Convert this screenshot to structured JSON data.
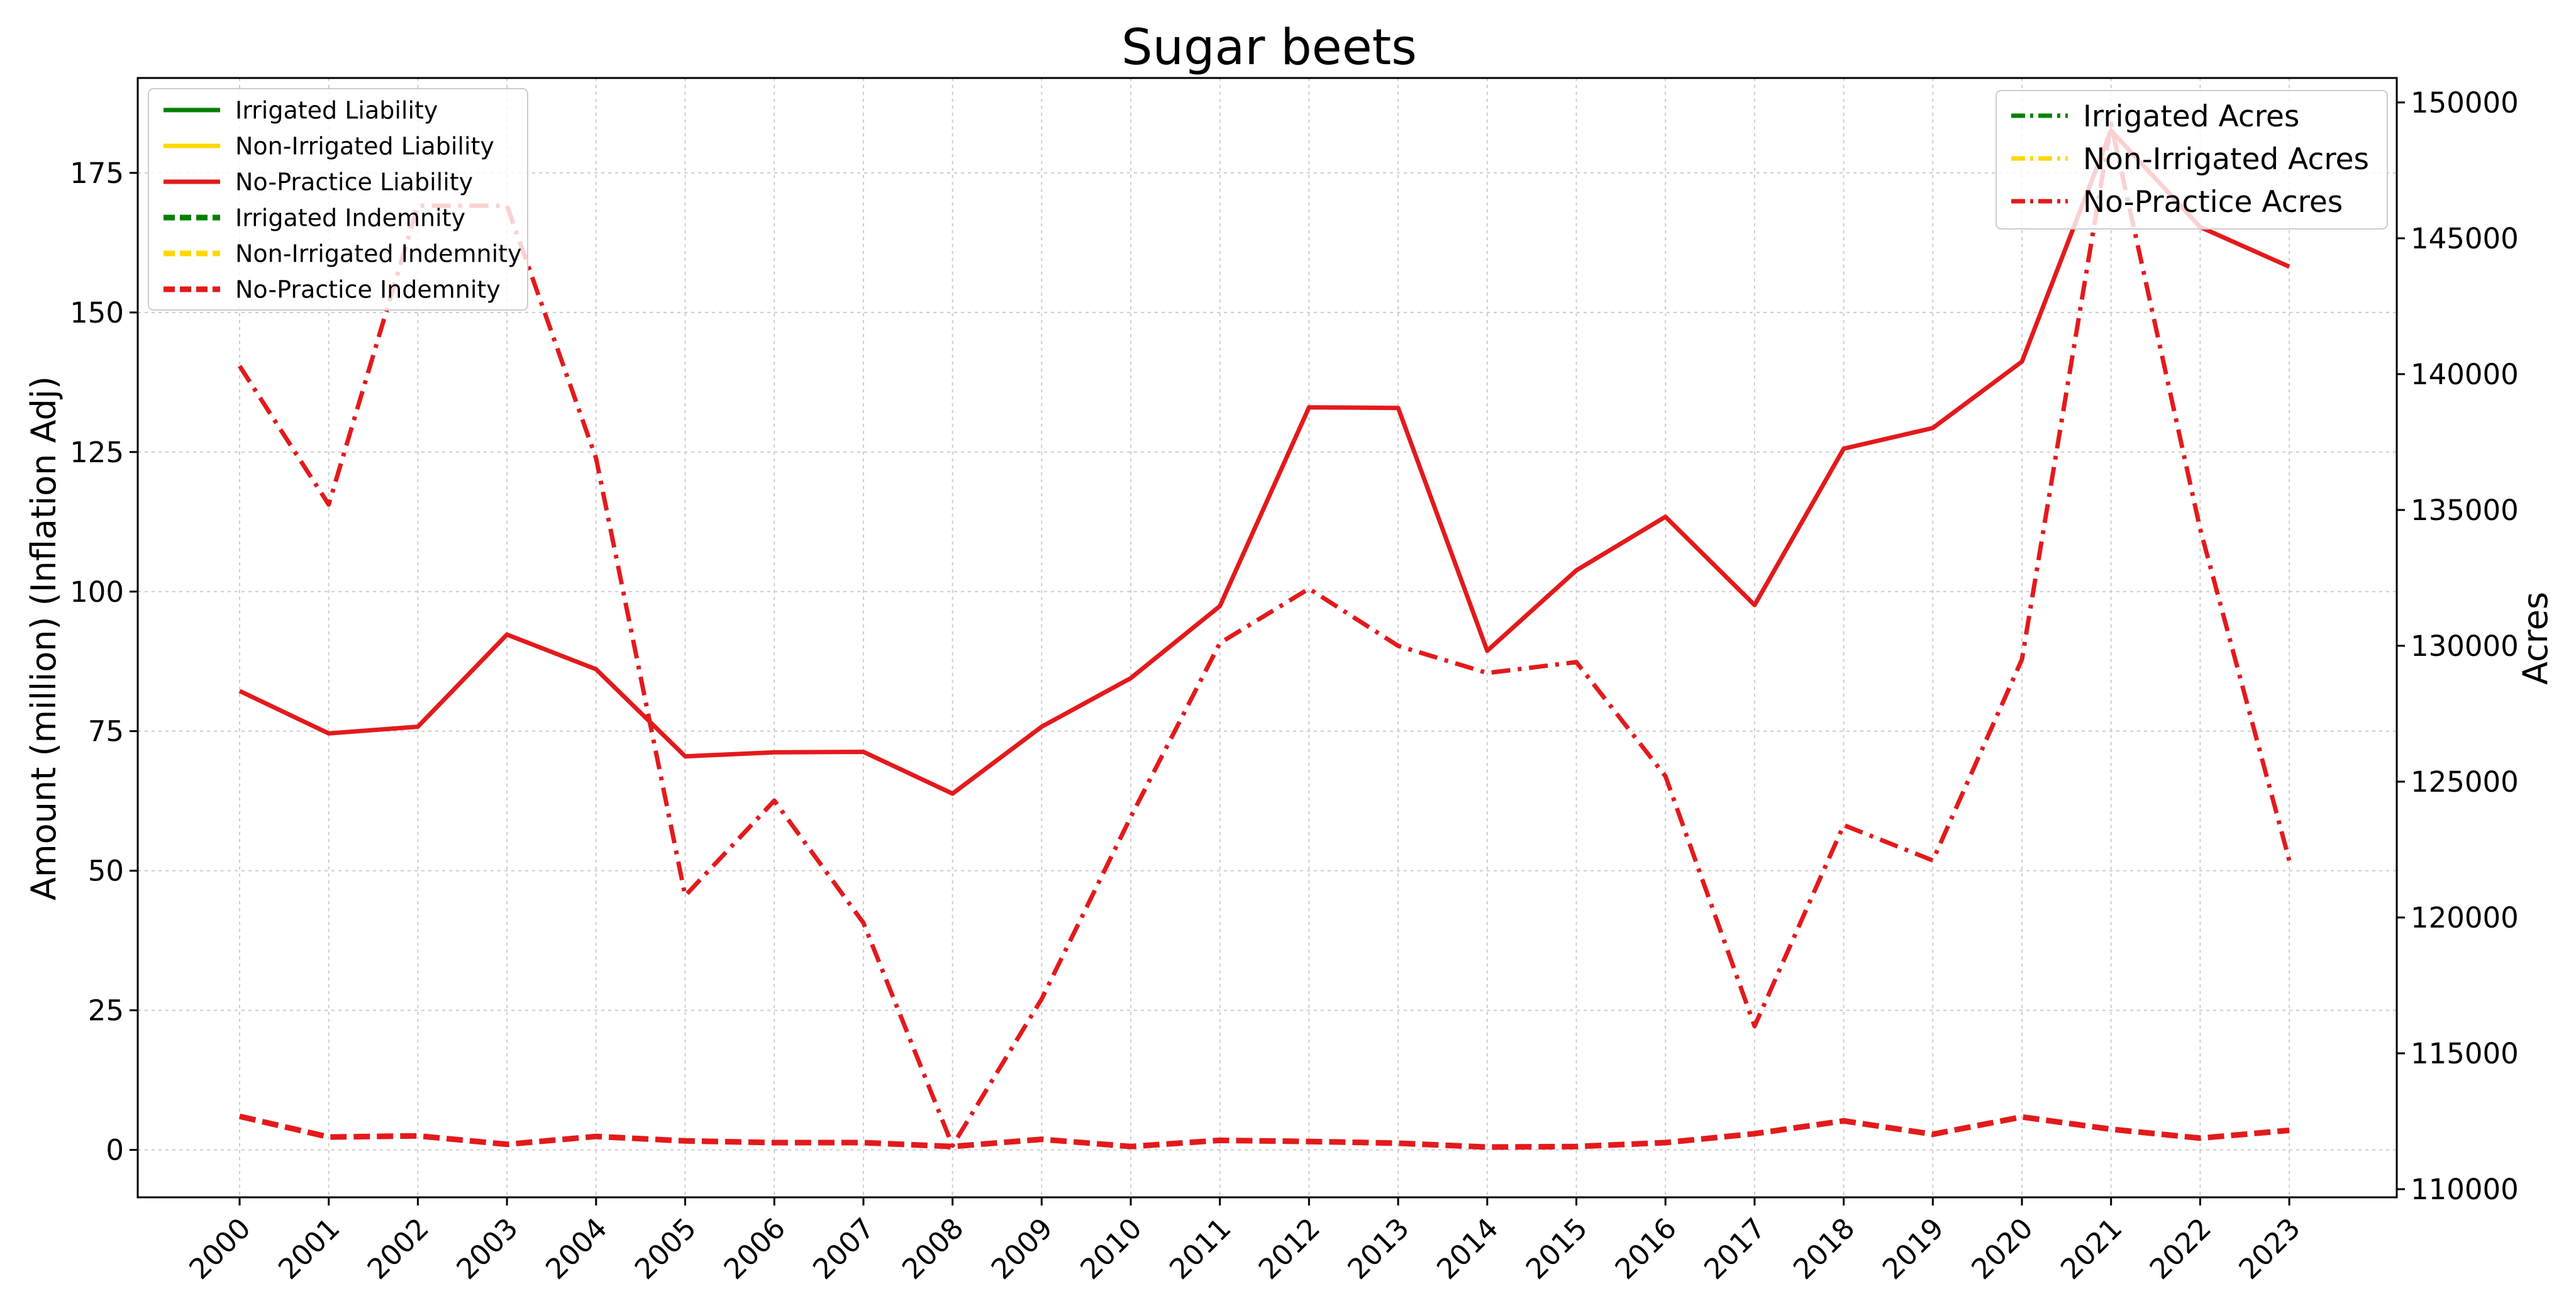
{
  "chart_data": {
    "type": "line",
    "title": "Sugar beets",
    "xlabel": "",
    "ylabel_left": "Amount (million) (Inflation Adj)",
    "ylabel_right": "Acres",
    "grid": true,
    "x": [
      "2000",
      "2001",
      "2002",
      "2003",
      "2004",
      "2005",
      "2006",
      "2007",
      "2008",
      "2009",
      "2010",
      "2011",
      "2012",
      "2013",
      "2014",
      "2015",
      "2016",
      "2017",
      "2018",
      "2019",
      "2020",
      "2021",
      "2022",
      "2023"
    ],
    "ylim_left": [
      -8.5,
      192
    ],
    "yticks_left": [
      0,
      25,
      50,
      75,
      100,
      125,
      150,
      175
    ],
    "ylim_right": [
      109700,
      150900
    ],
    "yticks_right": [
      110000,
      115000,
      120000,
      125000,
      130000,
      135000,
      140000,
      145000,
      150000
    ],
    "legend_left_placement": "upper-left",
    "legend_right_placement": "upper-right",
    "series": [
      {
        "name": "Irrigated Liability",
        "axis": "left",
        "style": "solid",
        "color": "#008000",
        "values": [
          null,
          null,
          null,
          null,
          null,
          null,
          null,
          null,
          null,
          null,
          null,
          null,
          null,
          null,
          null,
          null,
          null,
          null,
          null,
          null,
          null,
          null,
          null,
          null
        ]
      },
      {
        "name": "Non-Irrigated Liability",
        "axis": "left",
        "style": "solid",
        "color": "#FFD700",
        "values": [
          null,
          null,
          null,
          null,
          null,
          null,
          null,
          null,
          null,
          null,
          null,
          null,
          null,
          null,
          null,
          null,
          null,
          null,
          null,
          null,
          null,
          null,
          null,
          null
        ]
      },
      {
        "name": "No-Practice Liability",
        "axis": "left",
        "style": "solid",
        "color": "#E31A1C",
        "values": [
          82.2,
          74.6,
          75.8,
          92.3,
          86.1,
          70.5,
          71.2,
          71.3,
          63.8,
          75.8,
          84.5,
          97.4,
          133.0,
          132.9,
          89.4,
          103.8,
          113.4,
          97.6,
          125.6,
          129.3,
          141.2,
          182.6,
          165.3,
          158.2
        ]
      },
      {
        "name": "Irrigated Indemnity",
        "axis": "left",
        "style": "dashed",
        "color": "#008000",
        "values": [
          null,
          null,
          null,
          null,
          null,
          null,
          null,
          null,
          null,
          null,
          null,
          null,
          null,
          null,
          null,
          null,
          null,
          null,
          null,
          null,
          null,
          null,
          null,
          null
        ]
      },
      {
        "name": "Non-Irrigated Indemnity",
        "axis": "left",
        "style": "dashed",
        "color": "#FFD700",
        "values": [
          null,
          null,
          null,
          null,
          null,
          null,
          null,
          null,
          null,
          null,
          null,
          null,
          null,
          null,
          null,
          null,
          null,
          null,
          null,
          null,
          null,
          null,
          null,
          null
        ]
      },
      {
        "name": "No-Practice Indemnity",
        "axis": "left",
        "style": "dashed",
        "color": "#E31A1C",
        "values": [
          6.0,
          2.3,
          2.5,
          1.0,
          2.4,
          1.6,
          1.3,
          1.3,
          0.6,
          1.9,
          0.6,
          1.7,
          1.5,
          1.2,
          0.5,
          0.6,
          1.3,
          2.9,
          5.2,
          2.8,
          5.9,
          3.7,
          2.1,
          3.5
        ]
      },
      {
        "name": "Irrigated Acres",
        "axis": "right",
        "style": "dashdot",
        "color": "#008000",
        "values": [
          null,
          null,
          null,
          null,
          null,
          null,
          null,
          null,
          null,
          null,
          null,
          null,
          null,
          null,
          null,
          null,
          null,
          null,
          null,
          null,
          null,
          null,
          null,
          null
        ]
      },
      {
        "name": "Non-Irrigated Acres",
        "axis": "right",
        "style": "dashdot",
        "color": "#FFD700",
        "values": [
          null,
          null,
          null,
          null,
          null,
          null,
          null,
          null,
          null,
          null,
          null,
          null,
          null,
          null,
          null,
          null,
          null,
          null,
          null,
          null,
          null,
          null,
          null,
          null
        ]
      },
      {
        "name": "No-Practice Acres",
        "axis": "right",
        "style": "dashdot",
        "color": "#E31A1C",
        "values": [
          140300,
          135200,
          146200,
          146200,
          136900,
          120800,
          124300,
          119800,
          111600,
          117000,
          123700,
          130100,
          132100,
          130000,
          129000,
          129400,
          125200,
          116000,
          123400,
          122100,
          129500,
          149200,
          134300,
          122100
        ]
      }
    ]
  }
}
